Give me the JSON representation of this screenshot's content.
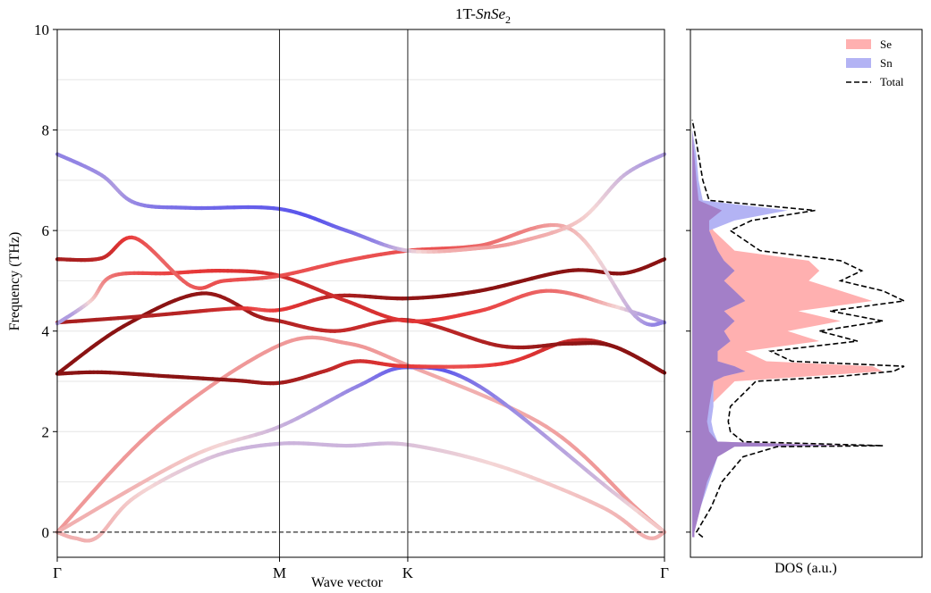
{
  "chart_data": [
    {
      "type": "line",
      "title_prefix": "1T-",
      "title_formula": "SnSe",
      "title_subscript": "2",
      "xlabel": "Wave vector",
      "ylabel": "Frequency (THz)",
      "ylim": [
        -0.5,
        10
      ],
      "yticks": [
        "0",
        "2",
        "4",
        "6",
        "8",
        "10"
      ],
      "high_symmetry_points": [
        {
          "label": "Γ",
          "x": 0.0
        },
        {
          "label": "M",
          "x": 1.0
        },
        {
          "label": "K",
          "x": 1.577
        },
        {
          "label": "Γ",
          "x": 2.732
        }
      ],
      "zero_line": true,
      "color_scale": {
        "blue": "#3b3bf0",
        "light": "#f4d6d6",
        "red": "#e83838",
        "dark": "#7a0d0d"
      },
      "bands": [
        {
          "points": [
            [
              0,
              0
            ],
            [
              0.45,
              2.1
            ],
            [
              1.0,
              3.72
            ],
            [
              1.3,
              3.76
            ],
            [
              1.577,
              3.32
            ],
            [
              2.2,
              2.1
            ],
            [
              2.6,
              0.5
            ],
            [
              2.732,
              0
            ]
          ],
          "weight": [
            0.45,
            0.45,
            0.45,
            0.45,
            0.4,
            0.45,
            0.45
          ]
        },
        {
          "points": [
            [
              0,
              0
            ],
            [
              0.6,
              1.5
            ],
            [
              1.0,
              2.1
            ],
            [
              1.35,
              2.9
            ],
            [
              1.577,
              3.28
            ],
            [
              1.9,
              2.9
            ],
            [
              2.5,
              0.8
            ],
            [
              2.732,
              0
            ]
          ],
          "weight": [
            0.4,
            0.3,
            0.2,
            0.1,
            0.05,
            0.2,
            0.35
          ]
        },
        {
          "points": [
            [
              0,
              0
            ],
            [
              0.08,
              -0.12
            ],
            [
              0.18,
              -0.1
            ],
            [
              0.35,
              0.7
            ],
            [
              0.7,
              1.5
            ],
            [
              1.0,
              1.76
            ],
            [
              1.3,
              1.72
            ],
            [
              1.577,
              1.74
            ],
            [
              2.0,
              1.3
            ],
            [
              2.45,
              0.5
            ],
            [
              2.65,
              -0.1
            ],
            [
              2.732,
              0
            ]
          ],
          "weight": [
            0.4,
            0.4,
            0.38,
            0.3,
            0.25,
            0.25,
            0.25,
            0.3,
            0.35,
            0.4,
            0.4
          ]
        },
        {
          "points": [
            [
              0,
              3.15
            ],
            [
              0.2,
              3.18
            ],
            [
              0.5,
              3.1
            ],
            [
              0.8,
              3.02
            ],
            [
              1.0,
              2.97
            ],
            [
              1.2,
              3.2
            ],
            [
              1.35,
              3.4
            ],
            [
              1.577,
              3.3
            ],
            [
              2.0,
              3.35
            ],
            [
              2.3,
              3.8
            ],
            [
              2.5,
              3.7
            ],
            [
              2.732,
              3.17
            ]
          ],
          "weight": [
            0.95,
            0.95,
            0.95,
            0.9,
            0.85,
            0.75,
            0.7,
            0.6,
            0.7,
            0.8,
            0.9
          ]
        },
        {
          "points": [
            [
              0,
              3.15
            ],
            [
              0.3,
              4.1
            ],
            [
              0.65,
              4.75
            ],
            [
              0.9,
              4.3
            ],
            [
              1.0,
              4.2
            ],
            [
              1.25,
              4.0
            ],
            [
              1.577,
              4.22
            ],
            [
              2.0,
              3.7
            ],
            [
              2.3,
              3.75
            ],
            [
              2.5,
              3.7
            ],
            [
              2.732,
              3.17
            ]
          ],
          "weight": [
            0.95,
            0.95,
            0.9,
            0.85,
            0.8,
            0.75,
            0.8,
            0.9,
            0.95,
            0.95
          ]
        },
        {
          "points": [
            [
              0,
              4.17
            ],
            [
              0.4,
              4.3
            ],
            [
              0.8,
              4.45
            ],
            [
              1.0,
              4.42
            ],
            [
              1.25,
              4.7
            ],
            [
              1.577,
              4.65
            ],
            [
              1.9,
              4.8
            ],
            [
              2.3,
              5.2
            ],
            [
              2.55,
              5.15
            ],
            [
              2.732,
              5.43
            ]
          ],
          "weight": [
            0.85,
            0.8,
            0.6,
            0.7,
            0.9,
            0.95,
            0.95,
            0.95,
            0.95
          ]
        },
        {
          "points": [
            [
              0,
              4.15
            ],
            [
              0.15,
              4.6
            ],
            [
              0.25,
              5.1
            ],
            [
              0.5,
              5.15
            ],
            [
              0.75,
              5.2
            ],
            [
              1.0,
              5.1
            ],
            [
              1.3,
              4.6
            ],
            [
              1.577,
              4.2
            ],
            [
              1.9,
              4.4
            ],
            [
              2.2,
              4.8
            ],
            [
              2.5,
              4.5
            ],
            [
              2.732,
              4.17
            ]
          ],
          "weight": [
            0.2,
            0.45,
            0.6,
            0.65,
            0.7,
            0.75,
            0.7,
            0.65,
            0.6,
            0.5,
            0.2
          ]
        },
        {
          "points": [
            [
              0,
              5.43
            ],
            [
              0.2,
              5.45
            ],
            [
              0.35,
              5.85
            ],
            [
              0.6,
              4.9
            ],
            [
              0.75,
              5.0
            ],
            [
              1.0,
              5.1
            ],
            [
              1.3,
              5.4
            ],
            [
              1.577,
              5.6
            ],
            [
              1.9,
              5.7
            ],
            [
              2.3,
              6.05
            ],
            [
              2.6,
              4.3
            ],
            [
              2.732,
              4.17
            ]
          ],
          "weight": [
            0.85,
            0.7,
            0.55,
            0.6,
            0.6,
            0.6,
            0.6,
            0.6,
            0.5,
            0.3,
            0.15
          ]
        },
        {
          "points": [
            [
              0,
              7.52
            ],
            [
              0.2,
              7.1
            ],
            [
              0.35,
              6.55
            ],
            [
              0.6,
              6.45
            ],
            [
              1.0,
              6.43
            ],
            [
              1.3,
              6.0
            ],
            [
              1.577,
              5.6
            ],
            [
              1.9,
              5.65
            ],
            [
              2.1,
              5.8
            ],
            [
              2.35,
              6.2
            ],
            [
              2.55,
              7.1
            ],
            [
              2.732,
              7.52
            ]
          ],
          "weight": [
            0.15,
            0.2,
            0.12,
            0.08,
            0.05,
            0.15,
            0.4,
            0.45,
            0.4,
            0.3,
            0.2
          ]
        }
      ]
    },
    {
      "type": "area",
      "xlabel": "DOS (a.u.)",
      "legend": {
        "position": "top-right",
        "entries": [
          "Se",
          "Sn",
          "Total"
        ]
      },
      "colors": {
        "Se": "#ffb0b0",
        "Sn": "#b3b3f4",
        "overlap": "#a37fc8",
        "Total": "#000000"
      },
      "freq": [
        -0.1,
        0.0,
        0.5,
        1.0,
        1.5,
        1.7,
        1.72,
        1.8,
        2.0,
        2.2,
        2.5,
        3.0,
        3.1,
        3.2,
        3.3,
        3.4,
        3.6,
        3.8,
        4.0,
        4.2,
        4.4,
        4.6,
        4.8,
        5.0,
        5.2,
        5.4,
        5.6,
        5.8,
        6.0,
        6.2,
        6.4,
        6.6,
        7.0,
        7.5,
        8.0,
        8.2
      ],
      "series": [
        {
          "name": "Se",
          "values": [
            0.01,
            0.01,
            0.04,
            0.07,
            0.12,
            0.2,
            0.75,
            0.12,
            0.08,
            0.07,
            0.08,
            0.2,
            0.55,
            0.9,
            0.85,
            0.35,
            0.25,
            0.6,
            0.45,
            0.7,
            0.5,
            0.85,
            0.7,
            0.55,
            0.6,
            0.55,
            0.2,
            0.15,
            0.1,
            0.08,
            0.14,
            0.03,
            0.02,
            0.01,
            0.0,
            0.0
          ]
        },
        {
          "name": "Sn",
          "values": [
            0.01,
            0.01,
            0.04,
            0.08,
            0.12,
            0.2,
            0.72,
            0.12,
            0.1,
            0.09,
            0.1,
            0.1,
            0.15,
            0.25,
            0.2,
            0.12,
            0.12,
            0.18,
            0.15,
            0.2,
            0.15,
            0.25,
            0.2,
            0.15,
            0.2,
            0.15,
            0.12,
            0.1,
            0.08,
            0.2,
            0.45,
            0.05,
            0.03,
            0.02,
            0.0,
            0.0
          ]
        },
        {
          "name": "Total",
          "values": [
            0.05,
            0.02,
            0.09,
            0.14,
            0.24,
            0.4,
            0.9,
            0.24,
            0.18,
            0.17,
            0.18,
            0.3,
            0.7,
            0.95,
            1.0,
            0.47,
            0.37,
            0.78,
            0.6,
            0.9,
            0.65,
            1.0,
            0.9,
            0.7,
            0.8,
            0.7,
            0.32,
            0.25,
            0.18,
            0.28,
            0.58,
            0.08,
            0.05,
            0.03,
            0.01,
            0.0
          ]
        }
      ]
    }
  ]
}
